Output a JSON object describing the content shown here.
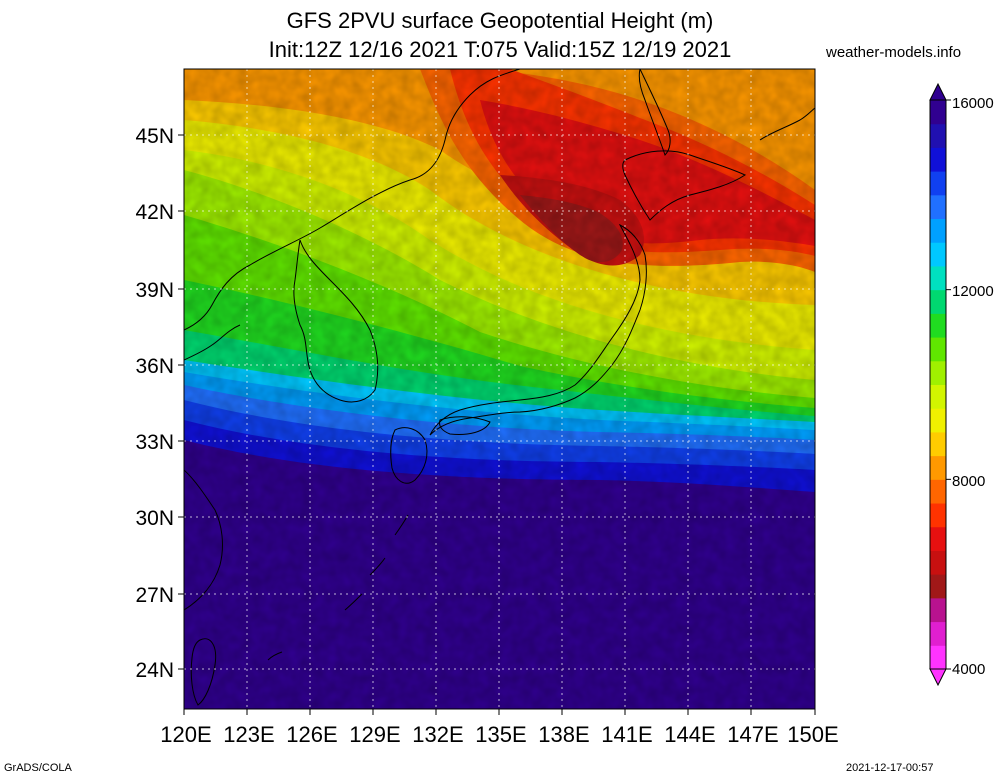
{
  "title_line1": "GFS 2PVU surface Geopotential Height (m)",
  "title_line2": "Init:12Z 12/16 2021 T:075 Valid:15Z 12/19 2021",
  "site": "weather-models.info",
  "lat_labels": [
    "45N",
    "42N",
    "39N",
    "36N",
    "33N",
    "30N",
    "27N",
    "24N"
  ],
  "lon_labels": [
    "120E",
    "123E",
    "126E",
    "129E",
    "132E",
    "135E",
    "138E",
    "141E",
    "144E",
    "147E",
    "150E"
  ],
  "colorbar_labels": [
    "16000",
    "12000",
    "8000",
    "4000"
  ],
  "colorbar_colors": [
    "#ff33ff",
    "#e01fd0",
    "#b8128f",
    "#a01818",
    "#c81010",
    "#e61010",
    "#ff3300",
    "#ff6600",
    "#ff9900",
    "#ffcc00",
    "#f0f000",
    "#d2f500",
    "#a0f000",
    "#60e600",
    "#20dc20",
    "#00d870",
    "#00e0c0",
    "#00c8ff",
    "#00a0ff",
    "#2070ff",
    "#1040f0",
    "#1010d8",
    "#2010b0",
    "#300090"
  ],
  "footer_left": "GrADS/COLA",
  "footer_right": "2021-12-17-00:57",
  "land_color": "#000000"
}
